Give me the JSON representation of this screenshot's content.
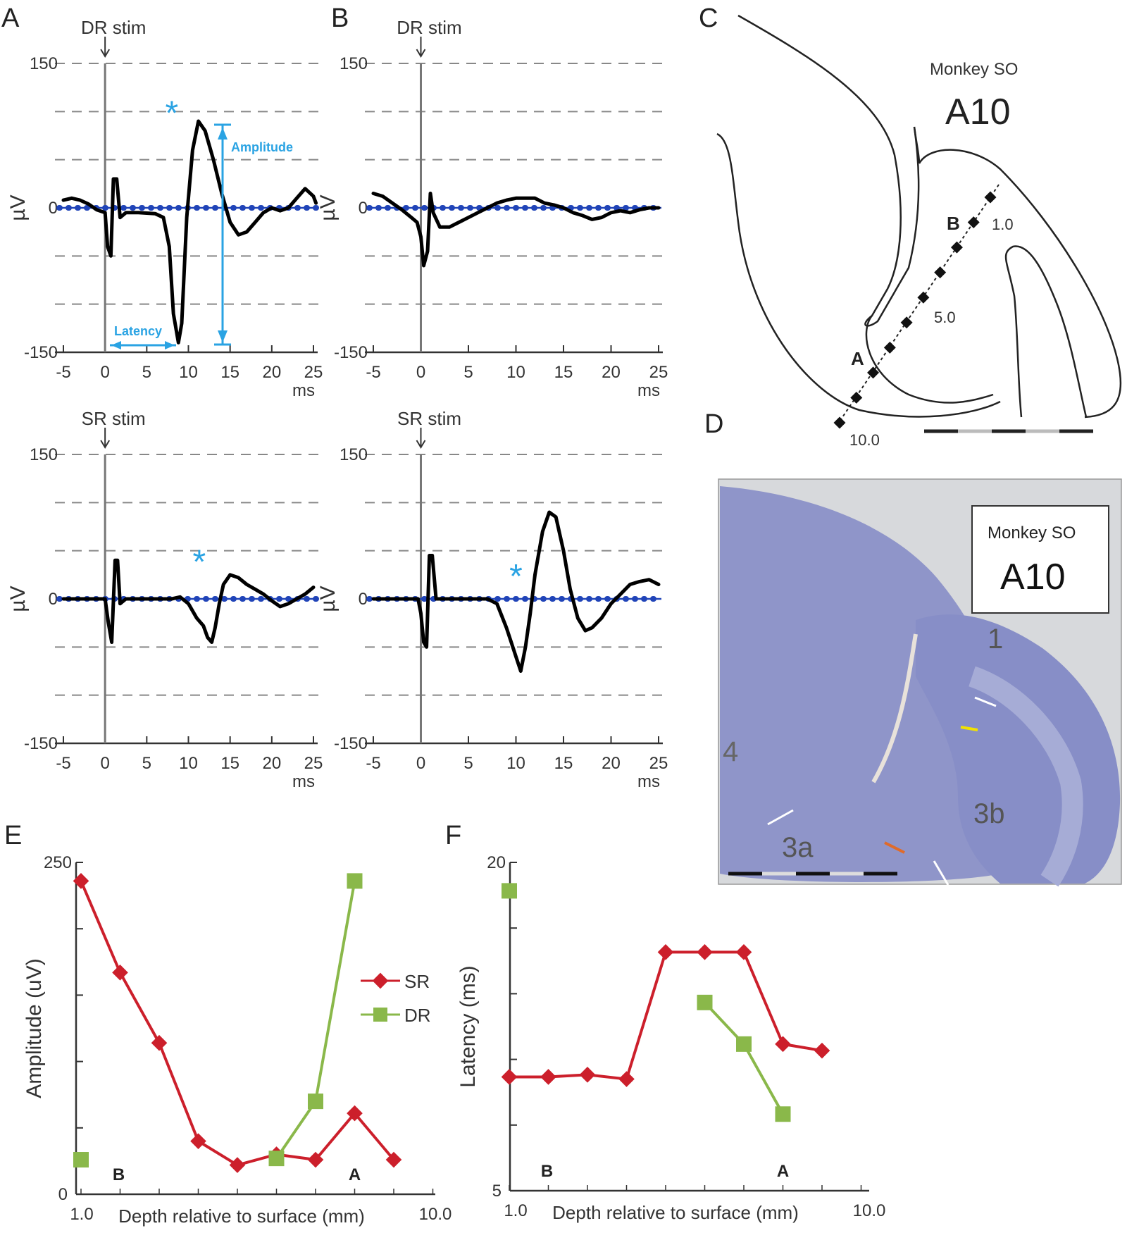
{
  "panels": {
    "A": "A",
    "B": "B",
    "C": "C",
    "D": "D",
    "E": "E",
    "F": "F"
  },
  "colors": {
    "trace": "#000000",
    "baseline": "#2044b8",
    "annotation": "#2aa3e3",
    "sr": "#cc1f2b",
    "dr": "#8ab84a",
    "grid": "#888888",
    "histology": "#8f95c9"
  },
  "traces": {
    "x_ticks": [
      "-5",
      "0",
      "5",
      "10",
      "15",
      "20",
      "25"
    ],
    "x_unit": "ms",
    "y_ticks": [
      "150",
      "0",
      "-150"
    ],
    "y_label": "µV",
    "plots": [
      {
        "id": "A-top",
        "stim_label": "DR stim",
        "asterisk": "*",
        "annotations": {
          "amplitude": "Amplitude",
          "latency": "Latency"
        },
        "points": [
          [
            -5,
            8
          ],
          [
            -4,
            10
          ],
          [
            -3,
            8
          ],
          [
            -2,
            4
          ],
          [
            -1,
            -2
          ],
          [
            0,
            -5
          ],
          [
            0.3,
            -40
          ],
          [
            0.7,
            -50
          ],
          [
            1.0,
            30
          ],
          [
            1.4,
            30
          ],
          [
            1.8,
            -10
          ],
          [
            2.5,
            -5
          ],
          [
            4,
            -5
          ],
          [
            6,
            -6
          ],
          [
            7,
            -10
          ],
          [
            7.7,
            -40
          ],
          [
            8.2,
            -110
          ],
          [
            8.8,
            -140
          ],
          [
            9.2,
            -120
          ],
          [
            9.8,
            -10
          ],
          [
            10.5,
            60
          ],
          [
            11.2,
            90
          ],
          [
            12,
            80
          ],
          [
            13,
            50
          ],
          [
            14,
            15
          ],
          [
            15,
            -15
          ],
          [
            16,
            -28
          ],
          [
            17,
            -25
          ],
          [
            18,
            -15
          ],
          [
            19,
            -5
          ],
          [
            20,
            0
          ],
          [
            21,
            -3
          ],
          [
            22,
            0
          ],
          [
            23,
            10
          ],
          [
            24,
            20
          ],
          [
            25,
            12
          ],
          [
            25.3,
            5
          ]
        ]
      },
      {
        "id": "B-top",
        "stim_label": "DR stim",
        "points": [
          [
            -5,
            15
          ],
          [
            -4,
            12
          ],
          [
            -3,
            5
          ],
          [
            -2,
            -2
          ],
          [
            -1,
            -10
          ],
          [
            -0.4,
            -15
          ],
          [
            0,
            -30
          ],
          [
            0.3,
            -60
          ],
          [
            0.7,
            -45
          ],
          [
            1.0,
            15
          ],
          [
            1.3,
            -5
          ],
          [
            2,
            -20
          ],
          [
            3,
            -20
          ],
          [
            4,
            -15
          ],
          [
            5,
            -10
          ],
          [
            6,
            -5
          ],
          [
            7,
            0
          ],
          [
            8,
            5
          ],
          [
            9,
            8
          ],
          [
            10,
            10
          ],
          [
            11,
            10
          ],
          [
            12,
            10
          ],
          [
            13,
            5
          ],
          [
            14,
            3
          ],
          [
            15,
            0
          ],
          [
            16,
            -5
          ],
          [
            17,
            -8
          ],
          [
            18,
            -12
          ],
          [
            19,
            -10
          ],
          [
            20,
            -5
          ],
          [
            21,
            -3
          ],
          [
            22,
            -5
          ],
          [
            23,
            -2
          ],
          [
            24,
            0
          ],
          [
            25,
            0
          ]
        ]
      },
      {
        "id": "A-bottom",
        "stim_label": "SR stim",
        "asterisk": "*",
        "points": [
          [
            -5,
            0
          ],
          [
            -3,
            0
          ],
          [
            -1,
            0
          ],
          [
            0,
            0
          ],
          [
            0.4,
            -25
          ],
          [
            0.8,
            -45
          ],
          [
            1.2,
            40
          ],
          [
            1.5,
            40
          ],
          [
            1.8,
            -5
          ],
          [
            2.5,
            0
          ],
          [
            5,
            0
          ],
          [
            7,
            0
          ],
          [
            8,
            0
          ],
          [
            9,
            2
          ],
          [
            10,
            -5
          ],
          [
            11,
            -20
          ],
          [
            11.8,
            -28
          ],
          [
            12.3,
            -40
          ],
          [
            12.8,
            -45
          ],
          [
            13.2,
            -30
          ],
          [
            13.7,
            -5
          ],
          [
            14.2,
            15
          ],
          [
            15,
            25
          ],
          [
            16,
            22
          ],
          [
            17,
            15
          ],
          [
            18,
            10
          ],
          [
            19,
            5
          ],
          [
            20,
            -2
          ],
          [
            21,
            -8
          ],
          [
            22,
            -5
          ],
          [
            23,
            0
          ],
          [
            24,
            5
          ],
          [
            25,
            12
          ]
        ]
      },
      {
        "id": "B-bottom",
        "stim_label": "SR stim",
        "asterisk": "*",
        "points": [
          [
            -5,
            0
          ],
          [
            -3,
            0
          ],
          [
            -1,
            0
          ],
          [
            -0.3,
            0
          ],
          [
            0,
            -15
          ],
          [
            0.3,
            -45
          ],
          [
            0.6,
            -50
          ],
          [
            0.9,
            45
          ],
          [
            1.2,
            45
          ],
          [
            1.6,
            0
          ],
          [
            3,
            0
          ],
          [
            5,
            0
          ],
          [
            7,
            0
          ],
          [
            8,
            -5
          ],
          [
            9,
            -30
          ],
          [
            9.5,
            -45
          ],
          [
            10,
            -60
          ],
          [
            10.5,
            -75
          ],
          [
            11,
            -50
          ],
          [
            11.5,
            -15
          ],
          [
            12,
            25
          ],
          [
            12.8,
            70
          ],
          [
            13.5,
            90
          ],
          [
            14.2,
            85
          ],
          [
            15,
            50
          ],
          [
            15.7,
            10
          ],
          [
            16.5,
            -20
          ],
          [
            17.3,
            -33
          ],
          [
            18,
            -30
          ],
          [
            19,
            -20
          ],
          [
            20,
            -5
          ],
          [
            21,
            5
          ],
          [
            22,
            15
          ],
          [
            23,
            18
          ],
          [
            24,
            20
          ],
          [
            25,
            15
          ]
        ]
      }
    ]
  },
  "schematic": {
    "title_small": "Monkey SO",
    "title_big": "A10",
    "track_labels": {
      "A": "A",
      "B": "B"
    },
    "depth_labels": [
      "1.0",
      "5.0",
      "10.0"
    ]
  },
  "histology": {
    "title_small": "Monkey SO",
    "title_big": "A10",
    "area_labels": [
      "1",
      "4",
      "3b",
      "3a"
    ]
  },
  "chart_data": [
    {
      "type": "line",
      "panel": "E",
      "ylabel": "Amplitude (uV)",
      "xlabel": "Depth relative to surface (mm)",
      "x_tick_labels": [
        "1.0",
        "10.0"
      ],
      "y_tick_labels": [
        "250",
        "0"
      ],
      "ylim": [
        0,
        250
      ],
      "xlim": [
        1.0,
        10.0
      ],
      "region_labels": [
        "B",
        "A"
      ],
      "series": [
        {
          "name": "SR",
          "x": [
            1.0,
            2.0,
            3.0,
            4.0,
            5.0,
            6.0,
            7.0,
            8.0,
            9.0
          ],
          "y": [
            236,
            167,
            114,
            40,
            22,
            30,
            26,
            61,
            26
          ]
        },
        {
          "name": "DR",
          "x": [
            1.0,
            6.0,
            7.0,
            8.0
          ],
          "y": [
            26,
            27,
            70,
            236
          ]
        }
      ]
    },
    {
      "type": "line",
      "panel": "F",
      "ylabel": "Latency (ms)",
      "xlabel": "Depth relative to surface (mm)",
      "x_tick_labels": [
        "1.0",
        "10.0"
      ],
      "y_tick_labels": [
        "20",
        "5"
      ],
      "ylim": [
        5,
        20
      ],
      "xlim": [
        1.0,
        10.0
      ],
      "region_labels": [
        "B",
        "A"
      ],
      "series": [
        {
          "name": "SR",
          "x": [
            1.0,
            2.0,
            3.0,
            4.0,
            5.0,
            6.0,
            7.0,
            8.0,
            9.0
          ],
          "y": [
            10.2,
            10.2,
            10.3,
            10.1,
            15.9,
            15.9,
            15.9,
            11.7,
            11.4
          ]
        },
        {
          "name": "DR",
          "x": [
            1.0,
            6.0,
            7.0,
            8.0
          ],
          "y": [
            18.7,
            13.6,
            11.7,
            8.5
          ]
        }
      ]
    }
  ]
}
